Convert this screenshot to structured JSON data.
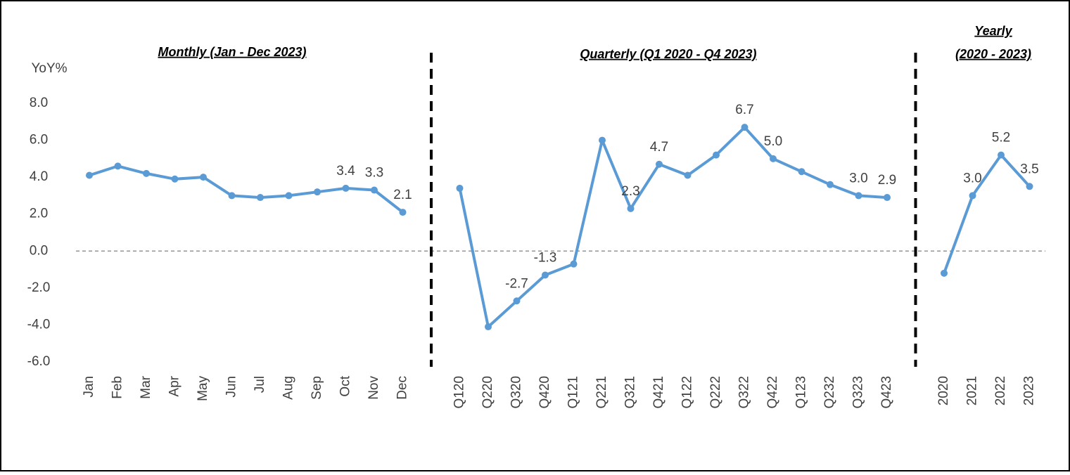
{
  "chart_data": {
    "type": "line",
    "y_label": "YoY%",
    "ylim": [
      -6,
      8
    ],
    "yticks": [
      {
        "value": 8,
        "label": "8.0"
      },
      {
        "value": 6,
        "label": "6.0"
      },
      {
        "value": 4,
        "label": "4.0"
      },
      {
        "value": 2,
        "label": "2.0"
      },
      {
        "value": 0,
        "label": "0.0"
      },
      {
        "value": -2,
        "label": "-2.0"
      },
      {
        "value": -4,
        "label": "-4.0"
      },
      {
        "value": -6,
        "label": "-6.0"
      }
    ],
    "color": "#5b9bd5",
    "zero_line": true,
    "panels": [
      {
        "title": [
          "Monthly (Jan - Dec 2023)"
        ],
        "categories": [
          "Jan",
          "Feb",
          "Mar",
          "Apr",
          "May",
          "Jun",
          "Jul",
          "Aug",
          "Sep",
          "Oct",
          "Nov",
          "Dec"
        ],
        "values": [
          4.1,
          4.6,
          4.2,
          3.9,
          4.0,
          3.0,
          2.9,
          3.0,
          3.2,
          3.4,
          3.3,
          2.1
        ],
        "value_labels": [
          null,
          null,
          null,
          null,
          null,
          null,
          null,
          null,
          null,
          "3.4",
          "3.3",
          "2.1"
        ]
      },
      {
        "title": [
          "Quarterly (Q1 2020 - Q4 2023)"
        ],
        "categories": [
          "Q120",
          "Q220",
          "Q320",
          "Q420",
          "Q121",
          "Q221",
          "Q321",
          "Q421",
          "Q122",
          "Q222",
          "Q322",
          "Q422",
          "Q123",
          "Q232",
          "Q323",
          "Q423"
        ],
        "values": [
          3.4,
          -4.1,
          -2.7,
          -1.3,
          -0.7,
          6.0,
          2.3,
          4.7,
          4.1,
          5.2,
          6.7,
          5.0,
          4.3,
          3.6,
          3.0,
          2.9
        ],
        "value_labels": [
          null,
          null,
          "-2.7",
          "-1.3",
          null,
          null,
          "2.3",
          "4.7",
          null,
          null,
          "6.7",
          "5.0",
          null,
          null,
          "3.0",
          "2.9"
        ]
      },
      {
        "title": [
          "Yearly",
          "(2020 - 2023)"
        ],
        "categories": [
          "2020",
          "2021",
          "2022",
          "2023"
        ],
        "values": [
          -1.2,
          3.0,
          5.2,
          3.5
        ],
        "value_labels": [
          null,
          "3.0",
          "5.2",
          "3.5"
        ]
      }
    ]
  }
}
